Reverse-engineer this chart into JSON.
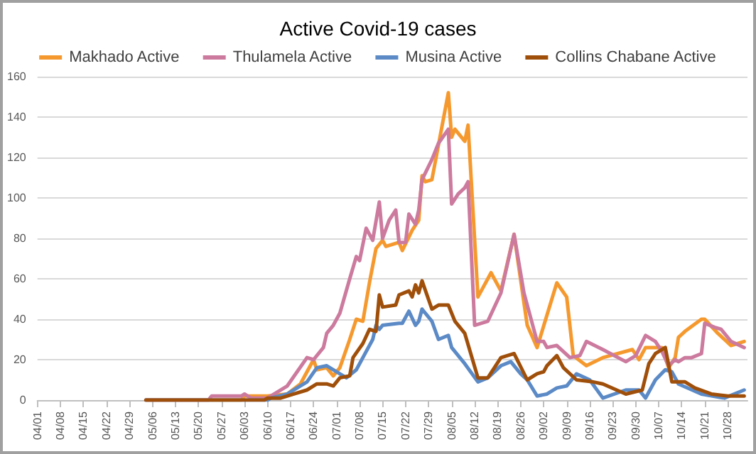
{
  "chart_data": {
    "type": "line",
    "title": "Active Covid-19 cases",
    "legend": "top",
    "grid": "y",
    "marker": "none",
    "line_style": "solid",
    "xlim": [
      "--04-01",
      "--11-03"
    ],
    "xticks": [
      {
        "value": "--04-01",
        "label": "04/01"
      },
      {
        "value": "--04-08",
        "label": "04/08"
      },
      {
        "value": "--04-15",
        "label": "04/15"
      },
      {
        "value": "--04-22",
        "label": "04/22"
      },
      {
        "value": "--04-29",
        "label": "04/29"
      },
      {
        "value": "--05-06",
        "label": "05/06"
      },
      {
        "value": "--05-13",
        "label": "05/13"
      },
      {
        "value": "--05-20",
        "label": "05/20"
      },
      {
        "value": "--05-27",
        "label": "05/27"
      },
      {
        "value": "--06-03",
        "label": "06/03"
      },
      {
        "value": "--06-10",
        "label": "06/10"
      },
      {
        "value": "--06-17",
        "label": "06/17"
      },
      {
        "value": "--06-24",
        "label": "06/24"
      },
      {
        "value": "--07-01",
        "label": "07/01"
      },
      {
        "value": "--07-08",
        "label": "07/08"
      },
      {
        "value": "--07-15",
        "label": "07/15"
      },
      {
        "value": "--07-22",
        "label": "07/22"
      },
      {
        "value": "--07-29",
        "label": "07/29"
      },
      {
        "value": "--08-05",
        "label": "08/05"
      },
      {
        "value": "--08-12",
        "label": "08/12"
      },
      {
        "value": "--08-19",
        "label": "08/19"
      },
      {
        "value": "--08-26",
        "label": "08/26"
      },
      {
        "value": "--09-02",
        "label": "09/02"
      },
      {
        "value": "--09-09",
        "label": "09/09"
      },
      {
        "value": "--09-16",
        "label": "09/16"
      },
      {
        "value": "--09-23",
        "label": "09/23"
      },
      {
        "value": "--09-30",
        "label": "09/30"
      },
      {
        "value": "--10-07",
        "label": "10/07"
      },
      {
        "value": "--10-14",
        "label": "10/14"
      },
      {
        "value": "--10-21",
        "label": "10/21"
      },
      {
        "value": "--10-28",
        "label": "10/28"
      }
    ],
    "ylim": [
      0,
      160
    ],
    "yticks": [
      0,
      20,
      40,
      60,
      80,
      100,
      120,
      140,
      160
    ],
    "series": [
      {
        "name": "Makhado Active",
        "color": "#f5992e",
        "x": [
          "--05-04",
          "--06-02",
          "--06-03",
          "--06-10",
          "--06-16",
          "--06-20",
          "--06-24",
          "--06-25",
          "--06-28",
          "--06-30",
          "--07-02",
          "--07-05",
          "--07-07",
          "--07-09",
          "--07-11",
          "--07-13",
          "--07-15",
          "--07-16",
          "--07-20",
          "--07-21",
          "--07-24",
          "--07-26",
          "--07-27",
          "--07-28",
          "--07-30",
          "--08-04",
          "--08-05",
          "--08-06",
          "--08-09",
          "--08-10",
          "--08-13",
          "--08-17",
          "--08-20",
          "--08-24",
          "--08-28",
          "--08-31",
          "--09-03",
          "--09-06",
          "--09-09",
          "--09-11",
          "--09-15",
          "--09-20",
          "--09-29",
          "--10-01",
          "--10-03",
          "--10-08",
          "--10-10",
          "--10-12",
          "--10-13",
          "--10-15",
          "--10-20",
          "--10-21",
          "--10-25",
          "--10-29",
          "--11-02"
        ],
        "values": [
          0,
          0,
          2,
          2,
          3,
          8,
          20,
          15,
          16,
          12,
          16,
          30,
          40,
          39,
          58,
          75,
          79,
          76,
          78,
          74,
          84,
          89,
          111,
          108,
          109,
          152,
          130,
          134,
          128,
          136,
          51,
          63,
          54,
          82,
          37,
          26,
          42,
          58,
          51,
          22,
          17,
          21,
          25,
          20,
          26,
          26,
          16,
          21,
          31,
          34,
          40,
          40,
          33,
          27,
          29
        ]
      },
      {
        "name": "Thulamela Active",
        "color": "#cc7a9e",
        "x": [
          "--05-04",
          "--05-23",
          "--05-24",
          "--06-02",
          "--06-03",
          "--06-04",
          "--06-05",
          "--06-10",
          "--06-13",
          "--06-16",
          "--06-22",
          "--06-24",
          "--06-27",
          "--06-28",
          "--06-30",
          "--07-02",
          "--07-05",
          "--07-07",
          "--07-08",
          "--07-10",
          "--07-12",
          "--07-14",
          "--07-15",
          "--07-17",
          "--07-19",
          "--07-20",
          "--07-22",
          "--07-23",
          "--07-25",
          "--07-26",
          "--07-27",
          "--07-30",
          "--08-01",
          "--08-04",
          "--08-05",
          "--08-07",
          "--08-09",
          "--08-10",
          "--08-12",
          "--08-16",
          "--08-20",
          "--08-24",
          "--08-27",
          "--08-31",
          "--09-02",
          "--09-03",
          "--09-06",
          "--09-10",
          "--09-13",
          "--09-15",
          "--09-20",
          "--09-27",
          "--09-30",
          "--10-03",
          "--10-06",
          "--10-08",
          "--10-10",
          "--10-12",
          "--10-13",
          "--10-15",
          "--10-17",
          "--10-20",
          "--10-21",
          "--10-24",
          "--10-26",
          "--10-29",
          "--11-02"
        ],
        "values": [
          0,
          0,
          2,
          2,
          3,
          2,
          1,
          1,
          4,
          7,
          21,
          20,
          26,
          33,
          37,
          43,
          60,
          71,
          69,
          85,
          79,
          98,
          80,
          89,
          94,
          78,
          78,
          92,
          87,
          94,
          109,
          119,
          127,
          134,
          97,
          102,
          105,
          108,
          37,
          39,
          53,
          82,
          53,
          29,
          29,
          26,
          27,
          21,
          22,
          29,
          25,
          19,
          22,
          32,
          29,
          24,
          17,
          20,
          19,
          21,
          21,
          23,
          38,
          36,
          35,
          29,
          26
        ]
      },
      {
        "name": "Musina Active",
        "color": "#5b8ac6",
        "x": [
          "--05-04",
          "--06-10",
          "--06-11",
          "--06-16",
          "--06-22",
          "--06-25",
          "--06-28",
          "--07-01",
          "--07-04",
          "--07-07",
          "--07-09",
          "--07-12",
          "--07-13",
          "--07-14",
          "--07-15",
          "--07-20",
          "--07-21",
          "--07-23",
          "--07-25",
          "--07-26",
          "--07-27",
          "--07-30",
          "--08-01",
          "--08-04",
          "--08-05",
          "--08-09",
          "--08-13",
          "--08-16",
          "--08-20",
          "--08-23",
          "--08-26",
          "--08-28",
          "--08-31",
          "--09-03",
          "--09-06",
          "--09-09",
          "--09-12",
          "--09-16",
          "--09-20",
          "--09-27",
          "--10-01",
          "--10-03",
          "--10-06",
          "--10-09",
          "--10-11",
          "--10-13",
          "--10-20",
          "--10-27",
          "--11-02"
        ],
        "values": [
          0,
          0,
          1,
          3,
          9,
          16,
          17,
          14,
          11,
          15,
          21,
          30,
          37,
          35,
          37,
          38,
          38,
          44,
          37,
          39,
          45,
          39,
          30,
          32,
          26,
          18,
          9,
          11,
          17,
          19,
          13,
          10,
          2,
          3,
          6,
          7,
          13,
          10,
          1,
          5,
          5,
          1,
          10,
          15,
          14,
          8,
          3,
          1,
          5
        ]
      },
      {
        "name": "Collins Chabane Active",
        "color": "#a04f0a",
        "x": [
          "--05-04",
          "--06-09",
          "--06-10",
          "--06-14",
          "--06-18",
          "--06-22",
          "--06-25",
          "--06-28",
          "--06-30",
          "--07-02",
          "--07-05",
          "--07-06",
          "--07-09",
          "--07-11",
          "--07-13",
          "--07-14",
          "--07-15",
          "--07-19",
          "--07-20",
          "--07-23",
          "--07-24",
          "--07-25",
          "--07-26",
          "--07-27",
          "--07-30",
          "--08-01",
          "--08-04",
          "--08-06",
          "--08-09",
          "--08-13",
          "--08-16",
          "--08-20",
          "--08-24",
          "--08-28",
          "--08-31",
          "--09-02",
          "--09-03",
          "--09-06",
          "--09-08",
          "--09-12",
          "--09-17",
          "--09-20",
          "--09-27",
          "--10-02",
          "--10-04",
          "--10-06",
          "--10-09",
          "--10-11",
          "--10-15",
          "--10-18",
          "--10-23",
          "--10-28",
          "--11-02"
        ],
        "values": [
          0,
          0,
          1,
          1,
          3,
          5,
          8,
          8,
          7,
          11,
          12,
          21,
          28,
          35,
          34,
          52,
          46,
          47,
          52,
          54,
          51,
          57,
          53,
          59,
          45,
          47,
          47,
          39,
          33,
          11,
          11,
          21,
          23,
          10,
          13,
          14,
          17,
          22,
          16,
          10,
          9,
          8,
          3,
          5,
          18,
          23,
          26,
          9,
          9,
          6,
          3,
          2,
          2
        ]
      }
    ]
  }
}
